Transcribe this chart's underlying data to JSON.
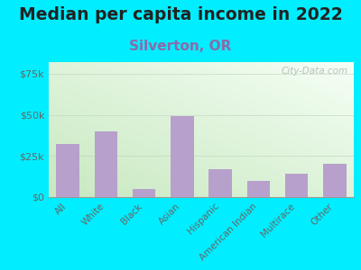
{
  "title": "Median per capita income in 2022",
  "subtitle": "Silverton, OR",
  "categories": [
    "All",
    "White",
    "Black",
    "Asian",
    "Hispanic",
    "American Indian",
    "Multirace",
    "Other"
  ],
  "values": [
    32000,
    40000,
    5000,
    49000,
    17000,
    10000,
    14000,
    20000
  ],
  "bar_color": "#b8a0cc",
  "background_outer": "#00eeff",
  "title_color": "#222222",
  "subtitle_color": "#8b6aaa",
  "ytick_labels": [
    "$0",
    "$25k",
    "$50k",
    "$75k"
  ],
  "ytick_values": [
    0,
    25000,
    50000,
    75000
  ],
  "ylim": [
    0,
    82000
  ],
  "watermark": "City-Data.com",
  "title_fontsize": 13.5,
  "subtitle_fontsize": 11,
  "tick_label_color": "#666666",
  "axis_label_color": "#666666",
  "grad_bottom_left": "#c8e8c0",
  "grad_top_right": "#f5fff5"
}
